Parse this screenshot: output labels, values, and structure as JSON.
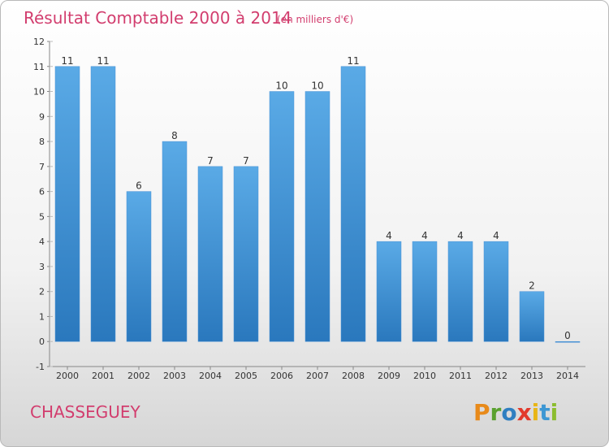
{
  "chart_data": {
    "type": "bar",
    "title": "Résultat Comptable 2000 à 2014",
    "subtitle": "(en milliers d'€)",
    "categories": [
      "2000",
      "2001",
      "2002",
      "2003",
      "2004",
      "2005",
      "2006",
      "2007",
      "2008",
      "2009",
      "2010",
      "2011",
      "2012",
      "2013",
      "2014"
    ],
    "values": [
      11,
      11,
      6,
      8,
      7,
      7,
      10,
      10,
      11,
      4,
      4,
      4,
      4,
      2,
      0
    ],
    "ylim": [
      -1,
      12
    ],
    "yticks": [
      "-1",
      "0",
      "1",
      "2",
      "3",
      "4",
      "5",
      "6",
      "7",
      "8",
      "9",
      "10",
      "11",
      "12"
    ],
    "xlabel": "",
    "ylabel": "",
    "grid": false,
    "colors": {
      "bar_top": "#5aaae6",
      "bar_bottom": "#2a78bd",
      "accent": "#d23d6e"
    }
  },
  "location": "CHASSEGUEY",
  "brand": {
    "letters": [
      "P",
      "r",
      "o",
      "x",
      "i",
      "t",
      "i"
    ],
    "colors": [
      "#e88a1a",
      "#5aa12f",
      "#2f7fc1",
      "#e23a2c",
      "#e8b516",
      "#3d97d3",
      "#8cbd2f"
    ]
  }
}
